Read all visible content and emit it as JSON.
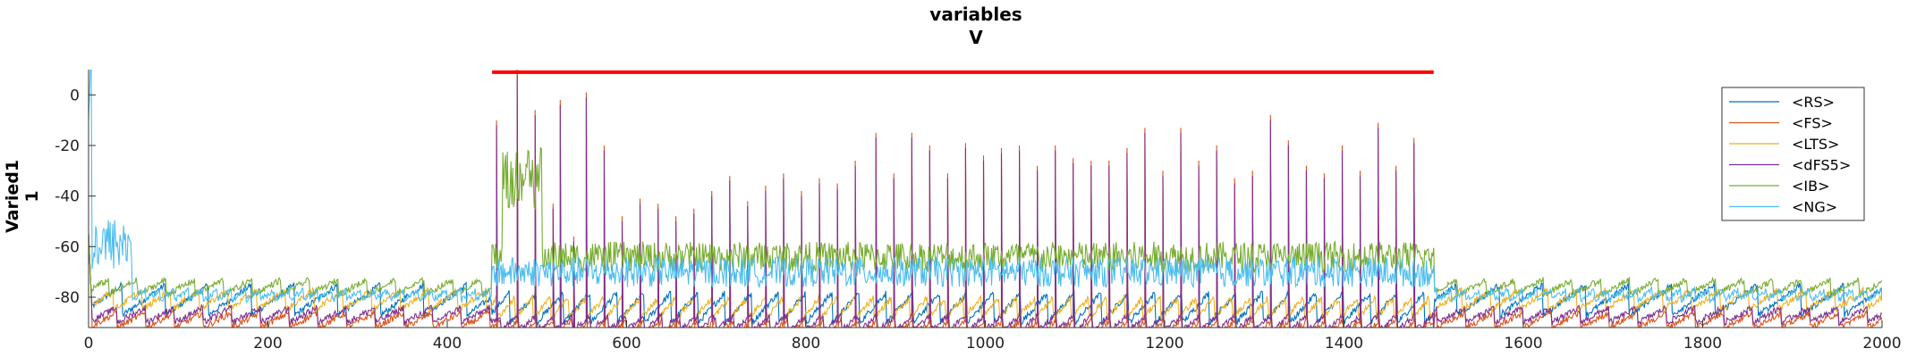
{
  "chart_data": {
    "type": "line",
    "title": "variables",
    "subtitle": "V",
    "xlabel": "",
    "ylabel": "Varied1",
    "ylabel2": "1",
    "xlim": [
      0,
      2000
    ],
    "ylim": [
      -92,
      10
    ],
    "xticks": [
      0,
      200,
      400,
      600,
      800,
      1000,
      1200,
      1400,
      1600,
      1800,
      2000
    ],
    "yticks": [
      0,
      -20,
      -40,
      -60,
      -80
    ],
    "grid": false,
    "legend_position": "top-right",
    "stimulus_bar": {
      "x_start": 450,
      "x_end": 1500,
      "y": 9,
      "color": "#ff0000"
    },
    "series": [
      {
        "name": "<RS>",
        "color": "#0072BD",
        "baseline": -75,
        "period": 30,
        "phase": 10,
        "amp": 12
      },
      {
        "name": "<FS>",
        "color": "#D95319",
        "baseline": -86,
        "period": 20,
        "phase": 0,
        "amp": 6
      },
      {
        "name": "<LTS>",
        "color": "#EDB120",
        "baseline": -77,
        "period": 20,
        "phase": 4,
        "amp": 8
      },
      {
        "name": "<dFS5>",
        "color": "#7E2F8E",
        "baseline": -84,
        "period": 20,
        "phase": 0,
        "amp": 6
      },
      {
        "name": "<IB>",
        "color": "#77AC30",
        "baseline": -73,
        "period": 20,
        "phase": 9,
        "amp": 6
      },
      {
        "name": "<NG>",
        "color": "#4DBEEE",
        "baseline": -77,
        "period": 10,
        "phase": 0,
        "amp": 4
      }
    ],
    "spikes": [
      {
        "x": 455,
        "y": -12
      },
      {
        "x": 478,
        "y": 8
      },
      {
        "x": 498,
        "y": -8
      },
      {
        "x": 518,
        "y": -45
      },
      {
        "x": 526,
        "y": -4
      },
      {
        "x": 541,
        "y": -58
      },
      {
        "x": 555,
        "y": -1
      },
      {
        "x": 575,
        "y": -22
      },
      {
        "x": 595,
        "y": -50
      },
      {
        "x": 615,
        "y": -43
      },
      {
        "x": 635,
        "y": -45
      },
      {
        "x": 655,
        "y": -50
      },
      {
        "x": 675,
        "y": -47
      },
      {
        "x": 695,
        "y": -40
      },
      {
        "x": 715,
        "y": -34
      },
      {
        "x": 735,
        "y": -44
      },
      {
        "x": 755,
        "y": -38
      },
      {
        "x": 775,
        "y": -33
      },
      {
        "x": 795,
        "y": -40
      },
      {
        "x": 815,
        "y": -35
      },
      {
        "x": 835,
        "y": -37
      },
      {
        "x": 855,
        "y": -28
      },
      {
        "x": 878,
        "y": -17
      },
      {
        "x": 898,
        "y": -33
      },
      {
        "x": 918,
        "y": -17
      },
      {
        "x": 938,
        "y": -22
      },
      {
        "x": 958,
        "y": -33
      },
      {
        "x": 978,
        "y": -21
      },
      {
        "x": 998,
        "y": -26
      },
      {
        "x": 1018,
        "y": -23
      },
      {
        "x": 1038,
        "y": -22
      },
      {
        "x": 1058,
        "y": -30
      },
      {
        "x": 1078,
        "y": -22
      },
      {
        "x": 1098,
        "y": -27
      },
      {
        "x": 1118,
        "y": -28
      },
      {
        "x": 1138,
        "y": -28
      },
      {
        "x": 1158,
        "y": -23
      },
      {
        "x": 1178,
        "y": -15
      },
      {
        "x": 1198,
        "y": -32
      },
      {
        "x": 1218,
        "y": -15
      },
      {
        "x": 1238,
        "y": -28
      },
      {
        "x": 1258,
        "y": -22
      },
      {
        "x": 1278,
        "y": -35
      },
      {
        "x": 1298,
        "y": -32
      },
      {
        "x": 1318,
        "y": -10
      },
      {
        "x": 1338,
        "y": -20
      },
      {
        "x": 1358,
        "y": -30
      },
      {
        "x": 1378,
        "y": -33
      },
      {
        "x": 1398,
        "y": -22
      },
      {
        "x": 1418,
        "y": -32
      },
      {
        "x": 1438,
        "y": -13
      },
      {
        "x": 1458,
        "y": -30
      },
      {
        "x": 1478,
        "y": -19
      }
    ],
    "ng_early_burst": {
      "x_start": 0,
      "x_end": 48,
      "y_low": -70,
      "y_high": -48
    },
    "ib_burst": {
      "x_start": 462,
      "x_end": 505,
      "y_low": -45,
      "y_high": -20
    }
  }
}
